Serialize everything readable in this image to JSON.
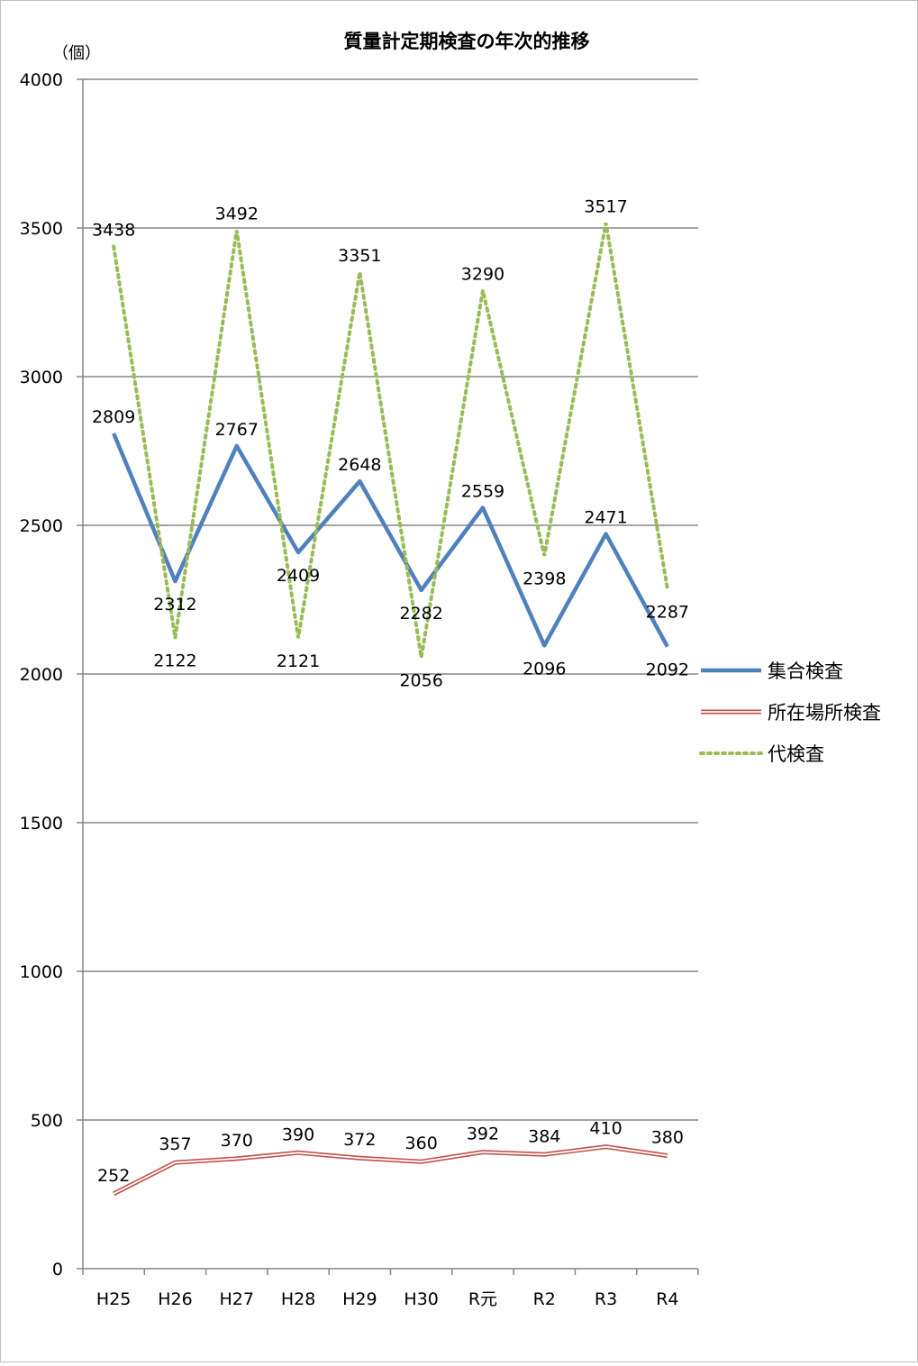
{
  "chart_data": {
    "type": "line",
    "title": "質量計定期検査の年次的推移",
    "ylabel": "（個）",
    "xlabel": "",
    "categories": [
      "H25",
      "H26",
      "H27",
      "H28",
      "H29",
      "H30",
      "R元",
      "R2",
      "R3",
      "R4"
    ],
    "ylim": [
      0,
      4000
    ],
    "yticks": [
      0,
      500,
      1000,
      1500,
      2000,
      2500,
      3000,
      3500,
      4000
    ],
    "grid": true,
    "legend": "right",
    "series": [
      {
        "name": "集合検査",
        "values": [
          2809,
          2312,
          2767,
          2409,
          2648,
          2282,
          2559,
          2096,
          2471,
          2092
        ],
        "color": "#4f81bd",
        "style": "solid"
      },
      {
        "name": "所在場所検査",
        "values": [
          252,
          357,
          370,
          390,
          372,
          360,
          392,
          384,
          410,
          380
        ],
        "color": "#c0504d",
        "style": "double"
      },
      {
        "name": "代検査",
        "values": [
          3438,
          2122,
          3492,
          2121,
          3351,
          2056,
          3290,
          2398,
          3517,
          2287
        ],
        "color": "#9bbb59",
        "style": "dotted"
      }
    ]
  }
}
